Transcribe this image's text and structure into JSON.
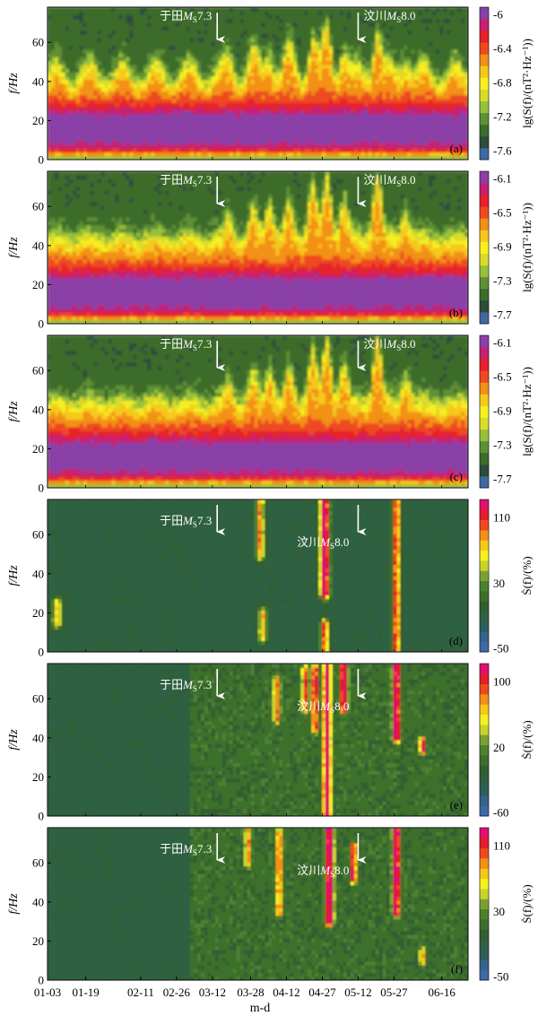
{
  "figure": {
    "xlabel": "m-d",
    "ylabel": "f/Hz",
    "x_tick_labels": [
      "01-03",
      "01-19",
      "02-11",
      "02-26",
      "03-12",
      "03-28",
      "04-12",
      "04-27",
      "05-12",
      "05-27",
      "06-16"
    ]
  },
  "chart_data": [
    {
      "type": "heatmap",
      "panel": "(a)",
      "ylabel": "f/Hz",
      "ylim": [
        0,
        78
      ],
      "y_ticks": [
        0,
        20,
        40,
        60
      ],
      "colorbar_title": "lg(S(f)/(nT²·Hz⁻¹))",
      "colorbar_ticks": [
        "-6",
        "-6.4",
        "-6.8",
        "-7.2",
        "-7.6"
      ],
      "colorbar_range": [
        -7.6,
        -6.0
      ],
      "events": [
        {
          "label": "于田Ms7.3",
          "name": "于田",
          "mag_symbol": "M",
          "mag_sub": "S",
          "mag_value": "7.3"
        },
        {
          "label": "汶川Ms8.0",
          "name": "汶川",
          "mag_symbol": "M",
          "mag_sub": "S",
          "mag_value": "8.0"
        }
      ]
    },
    {
      "type": "heatmap",
      "panel": "(b)",
      "ylabel": "f/Hz",
      "ylim": [
        0,
        78
      ],
      "y_ticks": [
        0,
        20,
        40,
        60
      ],
      "colorbar_title": "lg(S(f)/(nT²·Hz⁻¹))",
      "colorbar_ticks": [
        "-6.1",
        "-6.5",
        "-6.9",
        "-7.3",
        "-7.7"
      ],
      "colorbar_range": [
        -7.7,
        -6.1
      ],
      "events": [
        {
          "label": "于田Ms7.3",
          "name": "于田",
          "mag_symbol": "M",
          "mag_sub": "S",
          "mag_value": "7.3"
        },
        {
          "label": "汶川Ms8.0",
          "name": "汶川",
          "mag_symbol": "M",
          "mag_sub": "S",
          "mag_value": "8.0"
        }
      ]
    },
    {
      "type": "heatmap",
      "panel": "(c)",
      "ylabel": "f/Hz",
      "ylim": [
        0,
        78
      ],
      "y_ticks": [
        0,
        20,
        40,
        60
      ],
      "colorbar_title": "lg(S(f)/(nT²·Hz⁻¹))",
      "colorbar_ticks": [
        "-6.1",
        "-6.5",
        "-6.9",
        "-7.3",
        "-7.7"
      ],
      "colorbar_range": [
        -7.7,
        -6.1
      ],
      "events": [
        {
          "label": "于田Ms7.3",
          "name": "于田",
          "mag_symbol": "M",
          "mag_sub": "S",
          "mag_value": "7.3"
        },
        {
          "label": "汶川Ms8.0",
          "name": "汶川",
          "mag_symbol": "M",
          "mag_sub": "S",
          "mag_value": "8.0"
        }
      ]
    },
    {
      "type": "heatmap",
      "panel": "(d)",
      "ylabel": "f/Hz",
      "ylim": [
        0,
        78
      ],
      "y_ticks": [
        0,
        20,
        40,
        60
      ],
      "colorbar_title": "Ṡ(f)/(%)",
      "colorbar_ticks": [
        "110",
        "30",
        "-50"
      ],
      "colorbar_range": [
        -50,
        120
      ],
      "events": [
        {
          "label": "于田Ms7.3",
          "name": "于田",
          "mag_symbol": "M",
          "mag_sub": "S",
          "mag_value": "7.3"
        },
        {
          "label": "汶川Ms8.0",
          "name": "汶川",
          "mag_symbol": "M",
          "mag_sub": "S",
          "mag_value": "8.0"
        }
      ]
    },
    {
      "type": "heatmap",
      "panel": "(e)",
      "ylabel": "f/Hz",
      "ylim": [
        0,
        78
      ],
      "y_ticks": [
        0,
        20,
        40,
        60
      ],
      "colorbar_title": "Ṡ(f)/(%)",
      "colorbar_ticks": [
        "100",
        "20",
        "-60"
      ],
      "colorbar_range": [
        -60,
        120
      ],
      "events": [
        {
          "label": "于田Ms7.3",
          "name": "于田",
          "mag_symbol": "M",
          "mag_sub": "S",
          "mag_value": "7.3"
        },
        {
          "label": "汶川Ms8.0",
          "name": "汶川",
          "mag_symbol": "M",
          "mag_sub": "S",
          "mag_value": "8.0"
        }
      ]
    },
    {
      "type": "heatmap",
      "panel": "(f)",
      "ylabel": "f/Hz",
      "ylim": [
        0,
        78
      ],
      "y_ticks": [
        0,
        20,
        40,
        60
      ],
      "colorbar_title": "Ṡ(f)/(%)",
      "colorbar_ticks": [
        "110",
        "30",
        "-50"
      ],
      "colorbar_range": [
        -50,
        120
      ],
      "events": [
        {
          "label": "于田Ms7.3",
          "name": "于田",
          "mag_symbol": "M",
          "mag_sub": "S",
          "mag_value": "7.3"
        },
        {
          "label": "汶川Ms8.0",
          "name": "汶川",
          "mag_symbol": "M",
          "mag_sub": "S",
          "mag_value": "8.0"
        }
      ]
    }
  ],
  "palettes": {
    "spectrum": [
      "#3f69a4",
      "#2d4c3c",
      "#3c6c2c",
      "#5e9034",
      "#98c13a",
      "#dadc2a",
      "#f5f020",
      "#f6c81b",
      "#f39015",
      "#ee4a20",
      "#e6202c",
      "#c62070",
      "#8b3fa8"
    ],
    "change": [
      "#3f69a4",
      "#34648a",
      "#2e5e5c",
      "#2f6043",
      "#325f32",
      "#3d6f2c",
      "#4d8030",
      "#7aa232",
      "#c8d42a",
      "#f5f020",
      "#f6c81b",
      "#f39015",
      "#ee4a20",
      "#e21f2a",
      "#e01070"
    ]
  }
}
